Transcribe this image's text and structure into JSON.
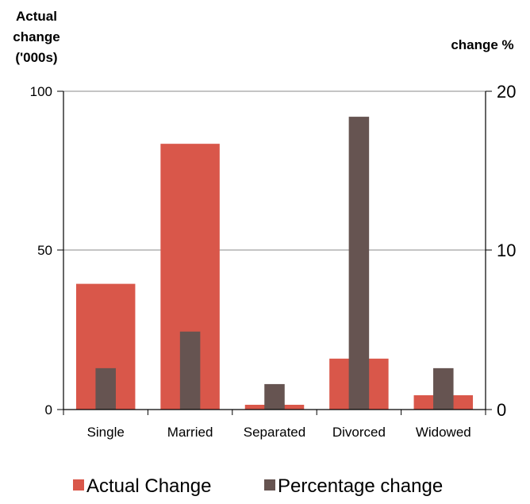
{
  "chart_data": {
    "type": "bar",
    "categories": [
      "Single",
      "Married",
      "Separated",
      "Divorced",
      "Widowed"
    ],
    "series": [
      {
        "name": "Actual Change",
        "axis": "left",
        "color": "#d9574a",
        "values": [
          39.5,
          83.5,
          1.5,
          16,
          4.5
        ]
      },
      {
        "name": "Percentage change",
        "axis": "right",
        "color": "#665451",
        "values": [
          2.6,
          4.9,
          1.6,
          18.4,
          2.6
        ]
      }
    ],
    "y_left": {
      "title_lines": [
        "Actual",
        "change",
        "('000s)"
      ],
      "ticks": [
        "0",
        "50",
        "100"
      ],
      "range": [
        0,
        100
      ]
    },
    "y_right": {
      "title": "change %",
      "ticks": [
        "0",
        "10",
        "20"
      ],
      "range": [
        0,
        20
      ]
    },
    "grid": true,
    "legend_position": "bottom"
  }
}
